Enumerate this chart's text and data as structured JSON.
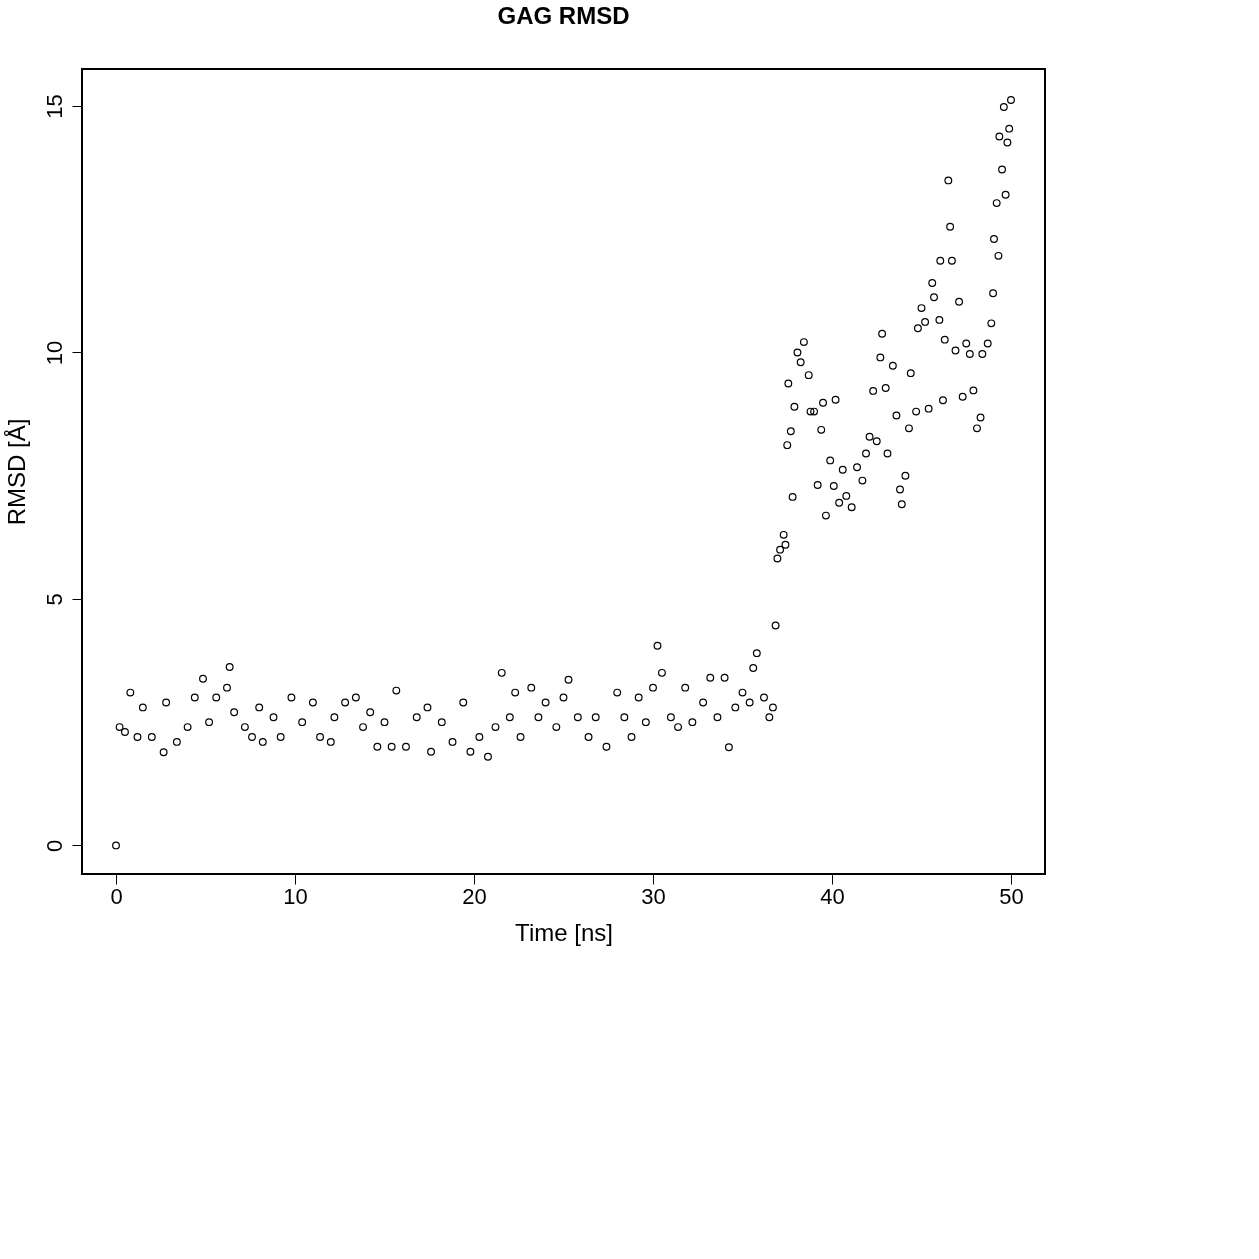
{
  "chart_data": {
    "type": "scatter",
    "title": "GAG RMSD",
    "xlabel": "Time [ns]",
    "ylabel": "RMSD [Å]",
    "x": [
      0,
      0.2,
      0.5,
      0.8,
      1.2,
      1.5,
      2.0,
      2.66,
      2.8,
      3.4,
      4.0,
      4.4,
      4.86,
      5.2,
      5.6,
      6.2,
      6.35,
      6.6,
      7.2,
      7.6,
      8.0,
      8.2,
      8.8,
      9.2,
      9.8,
      10.4,
      11.0,
      11.4,
      12.0,
      12.2,
      12.8,
      13.4,
      13.8,
      14.2,
      14.6,
      15.0,
      15.4,
      15.66,
      16.2,
      16.8,
      17.4,
      17.6,
      18.2,
      18.8,
      19.4,
      19.8,
      20.3,
      20.78,
      21.2,
      21.55,
      22.0,
      22.3,
      22.6,
      23.2,
      23.6,
      24.0,
      24.6,
      25.0,
      25.28,
      25.8,
      26.4,
      26.8,
      27.4,
      28.0,
      28.4,
      28.8,
      29.2,
      29.6,
      30.0,
      30.25,
      30.5,
      31.0,
      31.4,
      31.8,
      32.2,
      32.8,
      33.2,
      33.6,
      34.0,
      34.24,
      34.6,
      35.0,
      35.4,
      35.6,
      35.8,
      36.2,
      36.5,
      36.7,
      36.85,
      36.95,
      37.1,
      37.3,
      37.4,
      37.5,
      37.56,
      37.7,
      37.8,
      37.9,
      38.07,
      38.25,
      38.43,
      38.7,
      38.8,
      39.0,
      39.2,
      39.4,
      39.5,
      39.66,
      39.9,
      40.1,
      40.2,
      40.4,
      40.6,
      40.8,
      41.1,
      41.4,
      41.7,
      41.9,
      42.1,
      42.3,
      42.5,
      42.7,
      42.8,
      43.0,
      43.1,
      43.4,
      43.6,
      43.8,
      43.9,
      44.1,
      44.3,
      44.4,
      44.7,
      44.8,
      45.0,
      45.2,
      45.4,
      45.6,
      45.7,
      46.0,
      46.05,
      46.2,
      46.3,
      46.5,
      46.6,
      46.7,
      46.9,
      47.1,
      47.3,
      47.5,
      47.7,
      47.9,
      48.1,
      48.3,
      48.4,
      48.7,
      48.9,
      49.0,
      49.05,
      49.2,
      49.3,
      49.35,
      49.5,
      49.6,
      49.7,
      49.8,
      49.9,
      50.0
    ],
    "values": [
      0,
      2.4,
      2.3,
      3.1,
      2.2,
      2.8,
      2.2,
      1.89,
      2.9,
      2.1,
      2.4,
      3.0,
      3.38,
      2.5,
      3.0,
      3.2,
      3.62,
      2.7,
      2.4,
      2.2,
      2.8,
      2.1,
      2.6,
      2.2,
      3.0,
      2.5,
      2.9,
      2.2,
      2.1,
      2.6,
      2.9,
      3.0,
      2.4,
      2.7,
      2.0,
      2.5,
      2.0,
      3.14,
      2.0,
      2.6,
      2.8,
      1.9,
      2.5,
      2.1,
      2.9,
      1.9,
      2.2,
      1.8,
      2.4,
      3.5,
      2.6,
      3.1,
      2.2,
      3.2,
      2.6,
      2.9,
      2.4,
      3.0,
      3.36,
      2.6,
      2.2,
      2.6,
      2.0,
      3.1,
      2.6,
      2.2,
      3.0,
      2.5,
      3.2,
      4.05,
      3.5,
      2.6,
      2.4,
      3.2,
      2.5,
      2.9,
      3.4,
      2.6,
      3.4,
      1.99,
      2.8,
      3.1,
      2.9,
      3.6,
      3.9,
      3.0,
      2.6,
      2.8,
      4.46,
      5.82,
      6.0,
      6.3,
      6.1,
      8.12,
      9.37,
      8.4,
      7.07,
      8.9,
      10.0,
      9.8,
      10.21,
      9.54,
      8.8,
      8.8,
      7.31,
      8.43,
      8.98,
      6.69,
      7.81,
      7.29,
      9.04,
      6.95,
      7.62,
      7.09,
      6.86,
      7.67,
      7.4,
      7.95,
      8.29,
      9.22,
      8.2,
      9.9,
      10.38,
      9.28,
      7.95,
      9.73,
      8.72,
      7.22,
      6.92,
      7.5,
      8.46,
      9.58,
      8.8,
      10.49,
      10.9,
      10.62,
      8.86,
      11.41,
      11.12,
      10.66,
      11.86,
      9.03,
      10.26,
      13.49,
      12.55,
      11.86,
      10.04,
      11.03,
      9.1,
      10.18,
      9.97,
      9.23,
      8.46,
      8.68,
      9.97,
      10.18,
      10.59,
      11.2,
      12.3,
      13.03,
      11.96,
      14.38,
      13.71,
      14.98,
      13.2,
      14.26,
      14.54,
      15.12
    ],
    "color": "#000000",
    "marker": "circle",
    "xlim": [
      -1.9,
      51.9
    ],
    "ylim": [
      -0.58,
      15.75
    ],
    "xticks": [
      0,
      10,
      20,
      30,
      40,
      50
    ],
    "yticks": [
      0,
      5,
      10,
      15
    ],
    "grid": false
  }
}
